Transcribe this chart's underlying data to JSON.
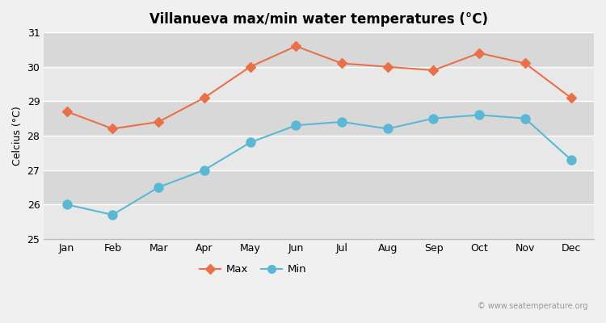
{
  "months": [
    "Jan",
    "Feb",
    "Mar",
    "Apr",
    "May",
    "Jun",
    "Jul",
    "Aug",
    "Sep",
    "Oct",
    "Nov",
    "Dec"
  ],
  "max_temps": [
    28.7,
    28.2,
    28.4,
    29.1,
    30.0,
    30.6,
    30.1,
    30.0,
    29.9,
    30.4,
    30.1,
    29.1
  ],
  "min_temps": [
    26.0,
    25.7,
    26.5,
    27.0,
    27.8,
    28.3,
    28.4,
    28.2,
    28.5,
    28.6,
    28.5,
    27.3
  ],
  "max_color": "#e8714a",
  "min_color": "#5bb8d4",
  "title": "Villanueva max/min water temperatures (°C)",
  "ylabel": "Celcius (°C)",
  "ylim": [
    25,
    31
  ],
  "yticks": [
    25,
    26,
    27,
    28,
    29,
    30,
    31
  ],
  "bg_color": "#f0f0f0",
  "band_colors": [
    "#e8e8e8",
    "#d8d8d8"
  ],
  "grid_color": "#ffffff",
  "watermark": "© www.seatemperature.org",
  "legend_max": "Max",
  "legend_min": "Min",
  "title_fontsize": 12,
  "axis_fontsize": 9,
  "tick_fontsize": 9
}
